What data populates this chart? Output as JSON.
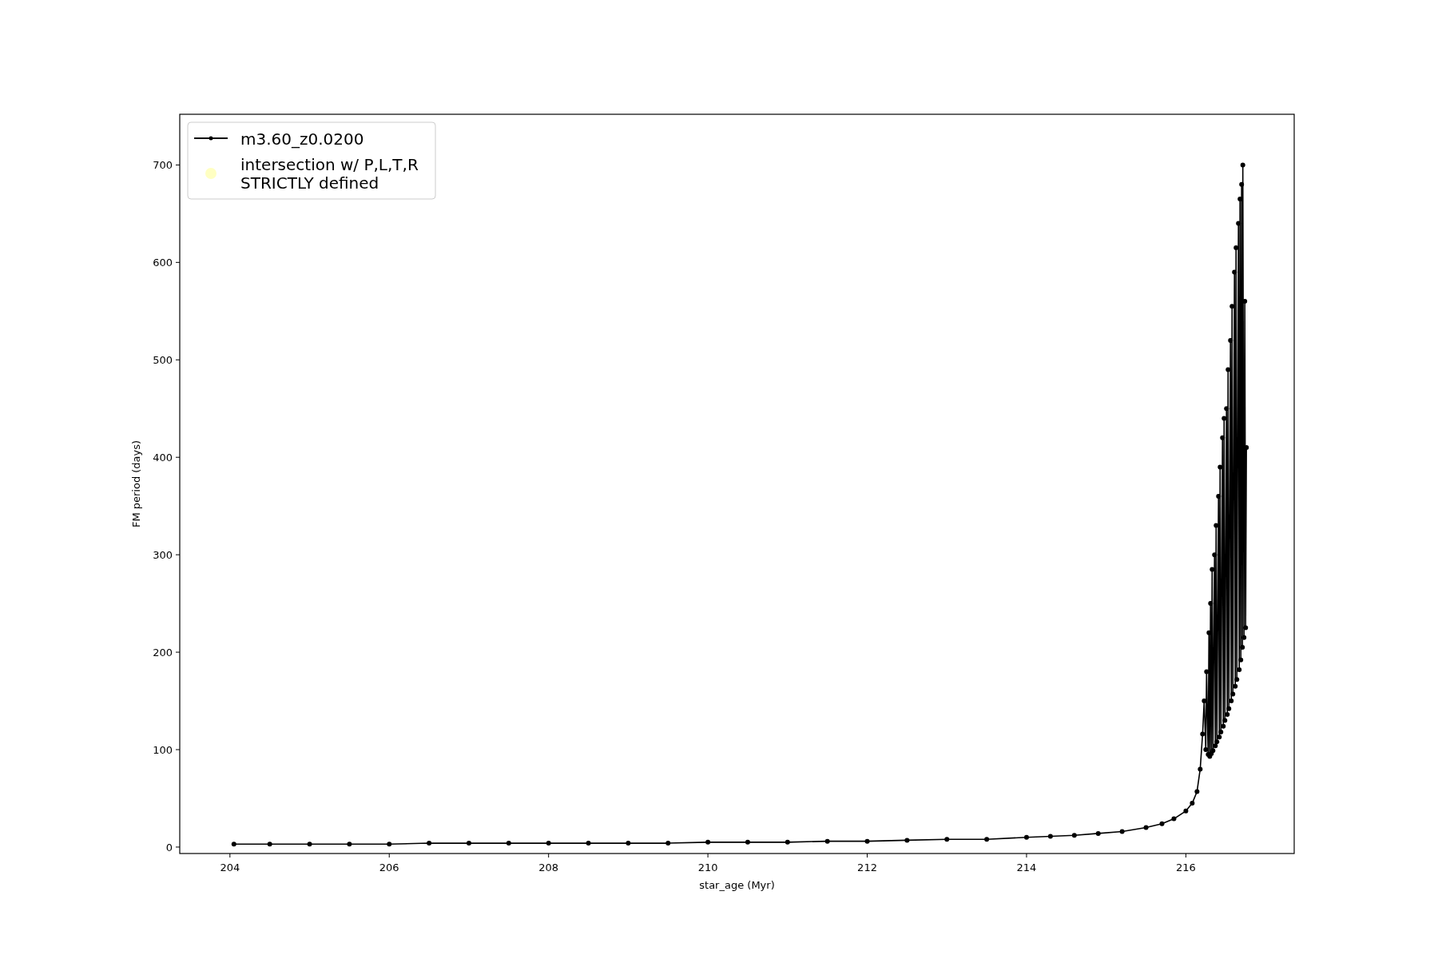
{
  "chart_data": {
    "type": "line",
    "xlabel": "star_age (Myr)",
    "ylabel": "FM period (days)",
    "xlim": [
      203.37,
      217.36
    ],
    "ylim": [
      -6.6,
      752
    ],
    "xticks": [
      204,
      206,
      208,
      210,
      212,
      214,
      216
    ],
    "yticks": [
      0,
      100,
      200,
      300,
      400,
      500,
      600,
      700
    ],
    "grid": false,
    "legend": "top left",
    "marker": "circle",
    "line_style": "solid",
    "series": [
      {
        "name": "m3.60_z0.0200",
        "color": "#000000",
        "x": [
          204.05,
          204.5,
          205,
          205.5,
          206,
          206.5,
          207,
          207.5,
          208,
          208.5,
          209,
          209.5,
          210,
          210.5,
          211,
          211.5,
          212,
          212.5,
          213,
          213.5,
          214,
          214.3,
          214.6,
          214.9,
          215.2,
          215.5,
          215.7,
          215.85,
          216,
          216.08,
          216.14,
          216.18,
          216.21,
          216.23,
          216.25,
          216.26,
          216.28,
          216.29,
          216.3,
          216.31,
          216.32,
          216.33,
          216.34,
          216.36,
          216.37,
          216.38,
          216.39,
          216.41,
          216.42,
          216.43,
          216.44,
          216.46,
          216.47,
          216.48,
          216.49,
          216.51,
          216.52,
          216.53,
          216.54,
          216.56,
          216.57,
          216.58,
          216.59,
          216.61,
          216.62,
          216.63,
          216.64,
          216.66,
          216.67,
          216.68,
          216.69,
          216.7,
          216.71,
          216.715,
          216.73,
          216.74,
          216.75,
          216.76
        ],
        "values": [
          3,
          3,
          3,
          3,
          3,
          4,
          4,
          4,
          4,
          4,
          4,
          4,
          5,
          5,
          5,
          6,
          6,
          7,
          8,
          8,
          10,
          11,
          12,
          14,
          16,
          20,
          24,
          29,
          37,
          45,
          57,
          80,
          116,
          150,
          100,
          180,
          95,
          220,
          93,
          250,
          96,
          285,
          99,
          300,
          104,
          330,
          108,
          360,
          113,
          390,
          118,
          420,
          124,
          440,
          130,
          450,
          136,
          490,
          142,
          520,
          150,
          555,
          157,
          590,
          165,
          615,
          172,
          640,
          182,
          665,
          192,
          680,
          205,
          700,
          215,
          560,
          225,
          410
        ]
      },
      {
        "name": "intersection w/ P,L,T,R\nSTRICTLY defined",
        "color": "#ffffb3",
        "type": "scatter"
      }
    ]
  }
}
